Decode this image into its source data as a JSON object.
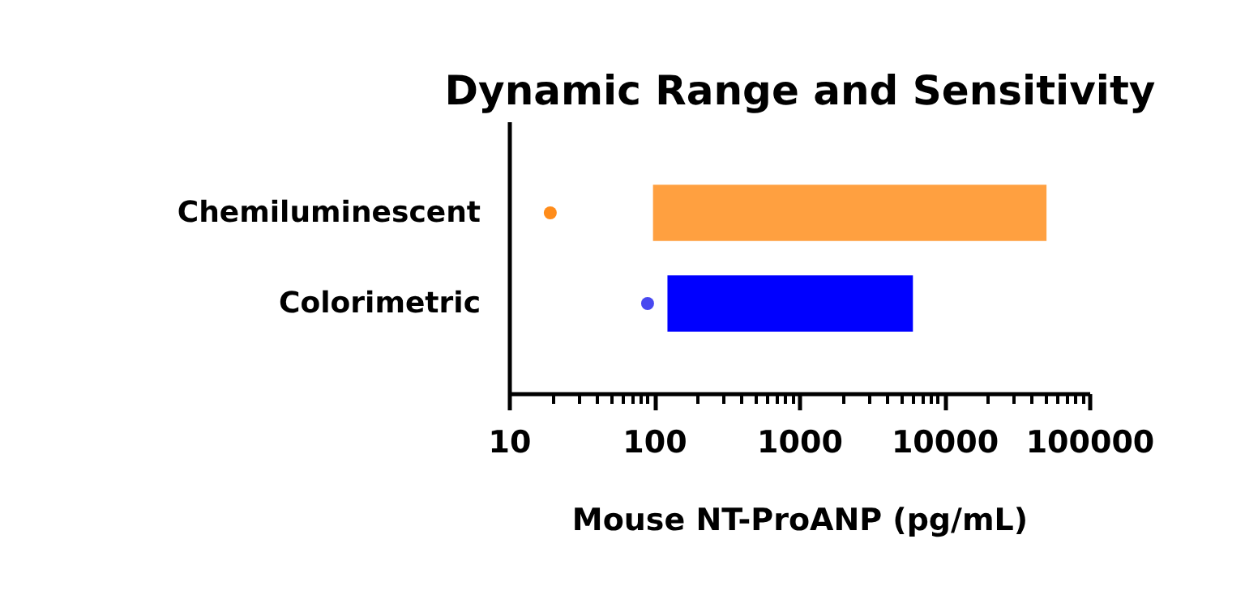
{
  "chart_data": {
    "type": "bar",
    "orientation": "horizontal",
    "title": "Dynamic Range and Sensitivity",
    "xlabel": "Mouse NT-ProANP (pg/mL)",
    "categories": [
      "Chemiluminescent",
      "Colorimetric"
    ],
    "series": [
      {
        "colors": [
          "#ffa040",
          "#0000ff"
        ],
        "base": [
          97,
          122
        ],
        "values": [
          49903,
          5878
        ]
      },
      {
        "type": "scatter",
        "colors": [
          "#ff8c1a",
          "#4848f0"
        ],
        "values": [
          19,
          89
        ]
      }
    ],
    "log": "x",
    "xlim": [
      10,
      100000
    ],
    "xticks": [
      10,
      100,
      1000,
      10000,
      100000
    ],
    "grid": false,
    "marker": "circle"
  }
}
